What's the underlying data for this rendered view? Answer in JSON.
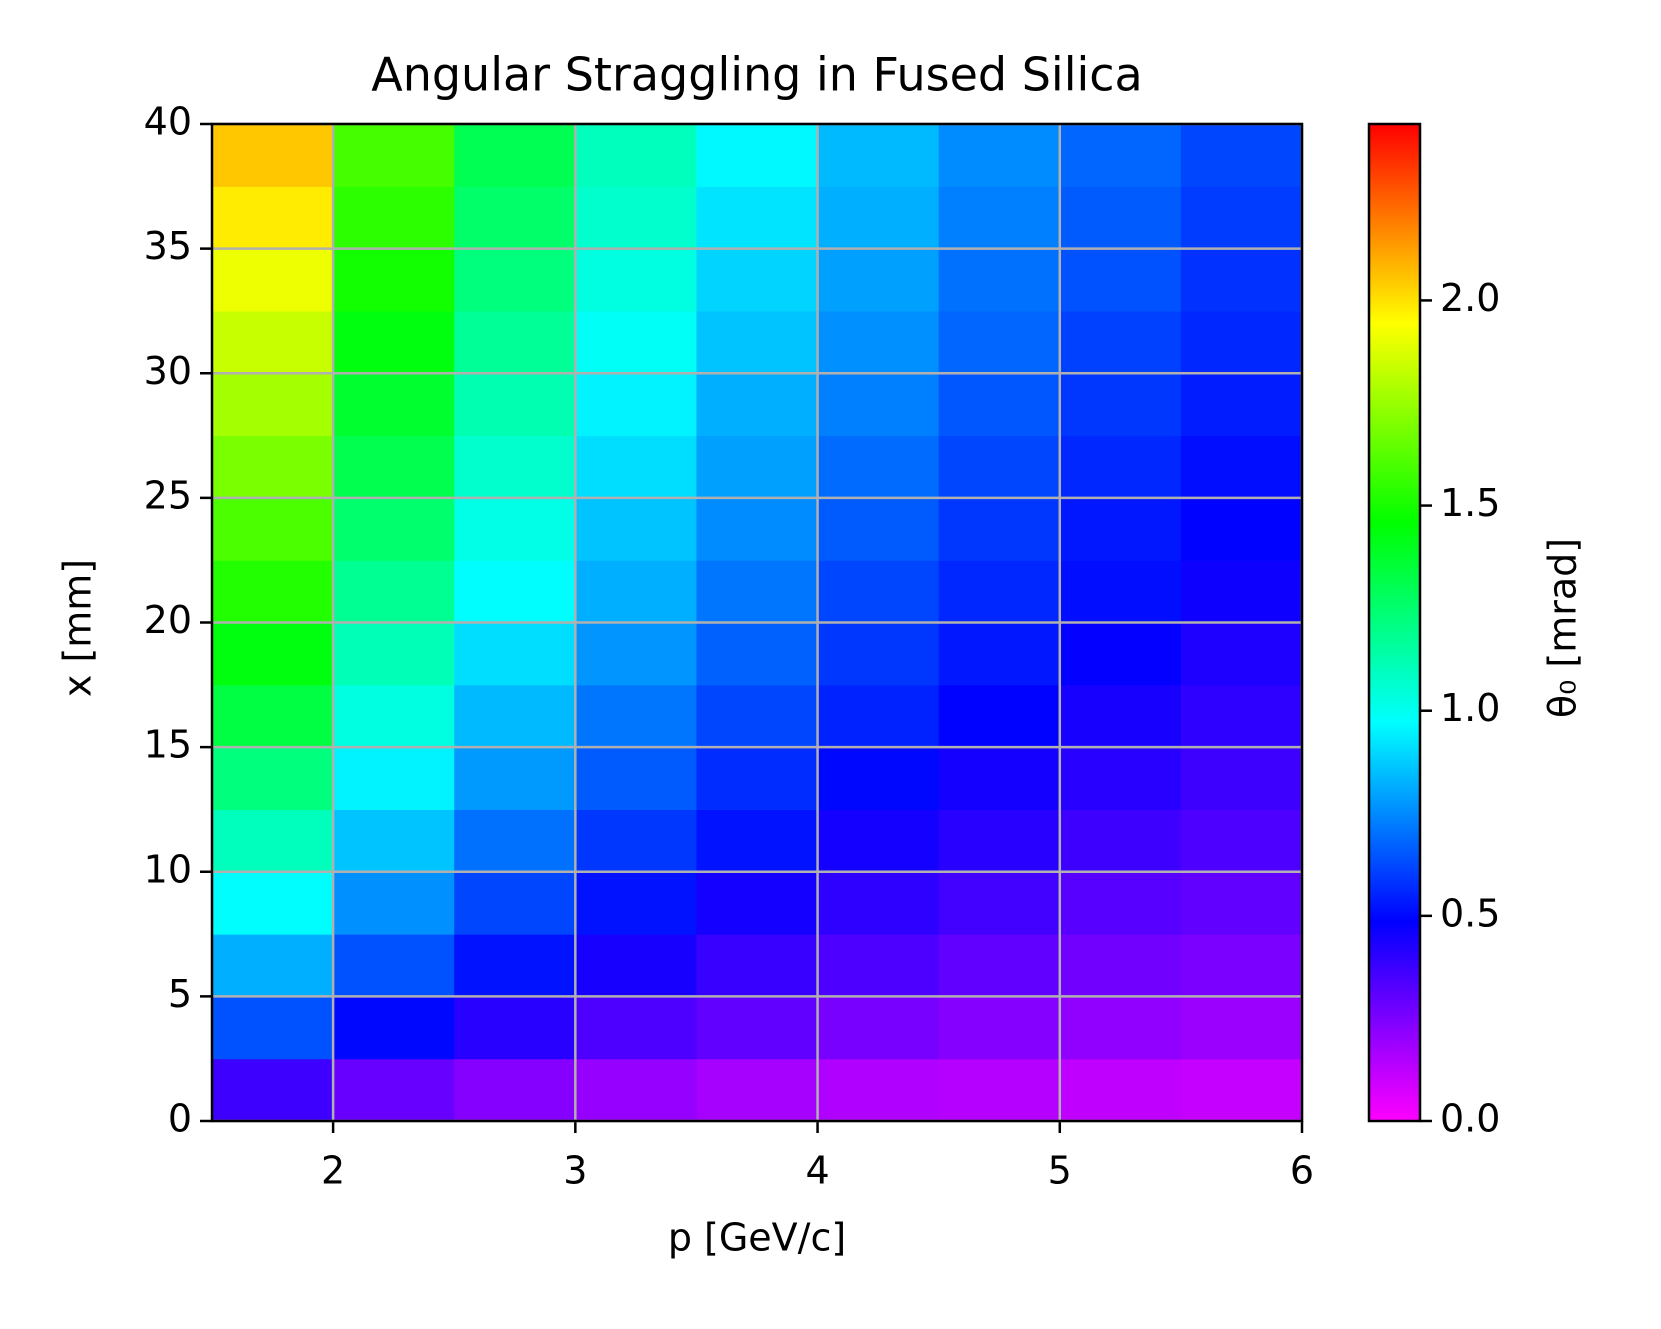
{
  "chart_data": {
    "type": "heatmap",
    "title": "Angular Straggling in Fused Silica",
    "xlabel": "p [GeV/c]",
    "ylabel": "x [mm]",
    "x_edges": [
      1.5,
      2,
      2.5,
      3,
      3.5,
      4,
      4.5,
      5,
      5.5,
      6
    ],
    "y_edges": [
      0,
      2.5,
      5,
      7.5,
      10,
      12.5,
      15,
      17.5,
      20,
      22.5,
      25,
      27.5,
      30,
      32.5,
      35,
      37.5,
      40
    ],
    "values": [
      [
        0.37,
        0.29,
        0.23,
        0.2,
        0.17,
        0.15,
        0.14,
        0.12,
        0.11
      ],
      [
        0.64,
        0.5,
        0.41,
        0.34,
        0.3,
        0.26,
        0.23,
        0.21,
        0.19
      ],
      [
        0.82,
        0.64,
        0.52,
        0.44,
        0.38,
        0.34,
        0.3,
        0.27,
        0.25
      ],
      [
        0.97,
        0.76,
        0.62,
        0.52,
        0.45,
        0.4,
        0.36,
        0.32,
        0.3
      ],
      [
        1.1,
        0.86,
        0.7,
        0.59,
        0.52,
        0.45,
        0.41,
        0.37,
        0.34
      ],
      [
        1.22,
        0.95,
        0.78,
        0.66,
        0.57,
        0.5,
        0.45,
        0.41,
        0.37
      ],
      [
        1.33,
        1.03,
        0.84,
        0.71,
        0.62,
        0.55,
        0.49,
        0.44,
        0.4
      ],
      [
        1.43,
        1.11,
        0.91,
        0.77,
        0.67,
        0.59,
        0.53,
        0.48,
        0.43
      ],
      [
        1.52,
        1.18,
        0.97,
        0.82,
        0.71,
        0.62,
        0.56,
        0.51,
        0.46
      ],
      [
        1.6,
        1.25,
        1.02,
        0.86,
        0.75,
        0.66,
        0.59,
        0.53,
        0.49
      ],
      [
        1.69,
        1.31,
        1.07,
        0.91,
        0.79,
        0.69,
        0.62,
        0.56,
        0.51
      ],
      [
        1.77,
        1.37,
        1.12,
        0.95,
        0.82,
        0.73,
        0.65,
        0.59,
        0.54
      ],
      [
        1.84,
        1.43,
        1.17,
        0.99,
        0.86,
        0.76,
        0.68,
        0.61,
        0.56
      ],
      [
        1.91,
        1.49,
        1.22,
        1.03,
        0.89,
        0.79,
        0.7,
        0.64,
        0.58
      ],
      [
        1.98,
        1.54,
        1.26,
        1.07,
        0.92,
        0.82,
        0.73,
        0.66,
        0.6
      ],
      [
        2.05,
        1.59,
        1.3,
        1.1,
        0.96,
        0.84,
        0.75,
        0.68,
        0.62
      ]
    ],
    "xlim": [
      1.5,
      6
    ],
    "ylim": [
      0,
      40
    ],
    "xticks": [
      2,
      3,
      4,
      5,
      6
    ],
    "yticks": [
      0,
      5,
      10,
      15,
      20,
      25,
      30,
      35,
      40
    ],
    "grid": true,
    "colormap": "gist_rainbow_r",
    "colorbar": {
      "label": "θ₀ [mrad]",
      "clim": [
        0,
        2.43
      ],
      "ticks": [
        {
          "value": 0,
          "label": "0.0"
        },
        {
          "value": 0.5,
          "label": "0.5"
        },
        {
          "value": 1,
          "label": "1.0"
        },
        {
          "value": 1.5,
          "label": "1.5"
        },
        {
          "value": 2,
          "label": "2.0"
        }
      ]
    }
  }
}
